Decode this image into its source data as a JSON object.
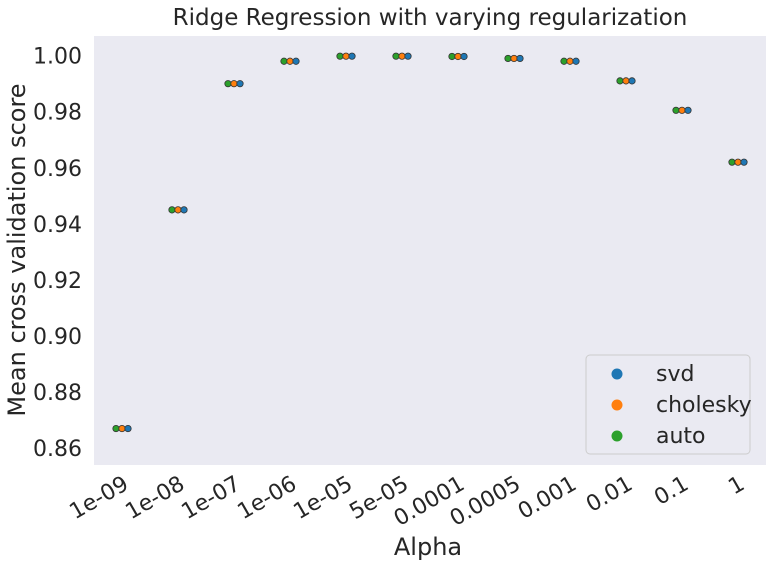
{
  "chart_data": {
    "type": "scatter",
    "title": "Ridge Regression with varying regularization",
    "xlabel": "Alpha",
    "ylabel": "Mean cross validation score",
    "categories": [
      "1e-09",
      "1e-08",
      "1e-07",
      "1e-06",
      "1e-05",
      "5e-05",
      "0.0001",
      "0.0005",
      "0.001",
      "0.01",
      "0.1",
      "1"
    ],
    "yticks": [
      "0.86",
      "0.88",
      "0.90",
      "0.92",
      "0.94",
      "0.96",
      "0.98",
      "1.00"
    ],
    "ylim": [
      0.854,
      1.007
    ],
    "grid": false,
    "legend_position": "bottom-right",
    "series": [
      {
        "name": "svd",
        "color": "#1f77b4",
        "values": [
          0.867,
          0.945,
          0.99,
          0.998,
          0.9998,
          0.9998,
          0.9997,
          0.999,
          0.998,
          0.991,
          0.9805,
          0.962
        ]
      },
      {
        "name": "cholesky",
        "color": "#ff7f0e",
        "values": [
          0.867,
          0.945,
          0.99,
          0.998,
          0.9998,
          0.9998,
          0.9997,
          0.999,
          0.998,
          0.991,
          0.9805,
          0.962
        ]
      },
      {
        "name": "auto",
        "color": "#2ca02c",
        "values": [
          0.867,
          0.945,
          0.99,
          0.998,
          0.9998,
          0.9998,
          0.9997,
          0.999,
          0.998,
          0.991,
          0.9805,
          0.962
        ]
      }
    ]
  }
}
